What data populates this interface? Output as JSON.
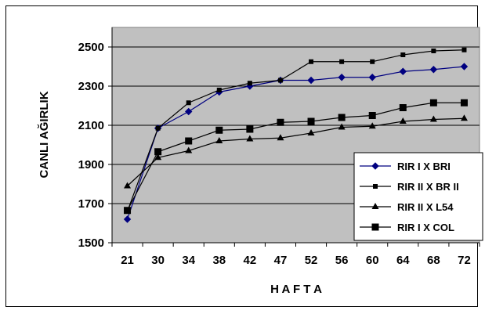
{
  "chart_data": {
    "type": "line",
    "categories": [
      "21",
      "30",
      "34",
      "38",
      "42",
      "47",
      "52",
      "56",
      "60",
      "64",
      "68",
      "72"
    ],
    "xlabel": "H A F T A",
    "ylabel": "CANLI AĞIRLIK",
    "ylim": [
      1500,
      2600
    ],
    "yticks": [
      "1500",
      "1700",
      "1900",
      "2100",
      "2300",
      "2500"
    ],
    "grid": "horizontal",
    "plot_background": "#c0c0c0",
    "legend_position": "right",
    "series": [
      {
        "name": "RIR I X BRI",
        "marker": "diamond",
        "values": [
          1620,
          2085,
          2170,
          2270,
          2300,
          2330,
          2330,
          2345,
          2345,
          2375,
          2385,
          2400
        ]
      },
      {
        "name": "RIR II X BR II",
        "marker": "small-square",
        "values": [
          1660,
          2085,
          2215,
          2280,
          2315,
          2330,
          2425,
          2425,
          2425,
          2460,
          2480,
          2485
        ]
      },
      {
        "name": "RIR II X L54",
        "marker": "triangle",
        "values": [
          1790,
          1935,
          1970,
          2020,
          2030,
          2035,
          2060,
          2090,
          2095,
          2120,
          2130,
          2135
        ]
      },
      {
        "name": "RIR I X COL",
        "marker": "square",
        "values": [
          1665,
          1965,
          2020,
          2075,
          2080,
          2115,
          2120,
          2140,
          2150,
          2190,
          2215,
          2215
        ]
      }
    ]
  }
}
